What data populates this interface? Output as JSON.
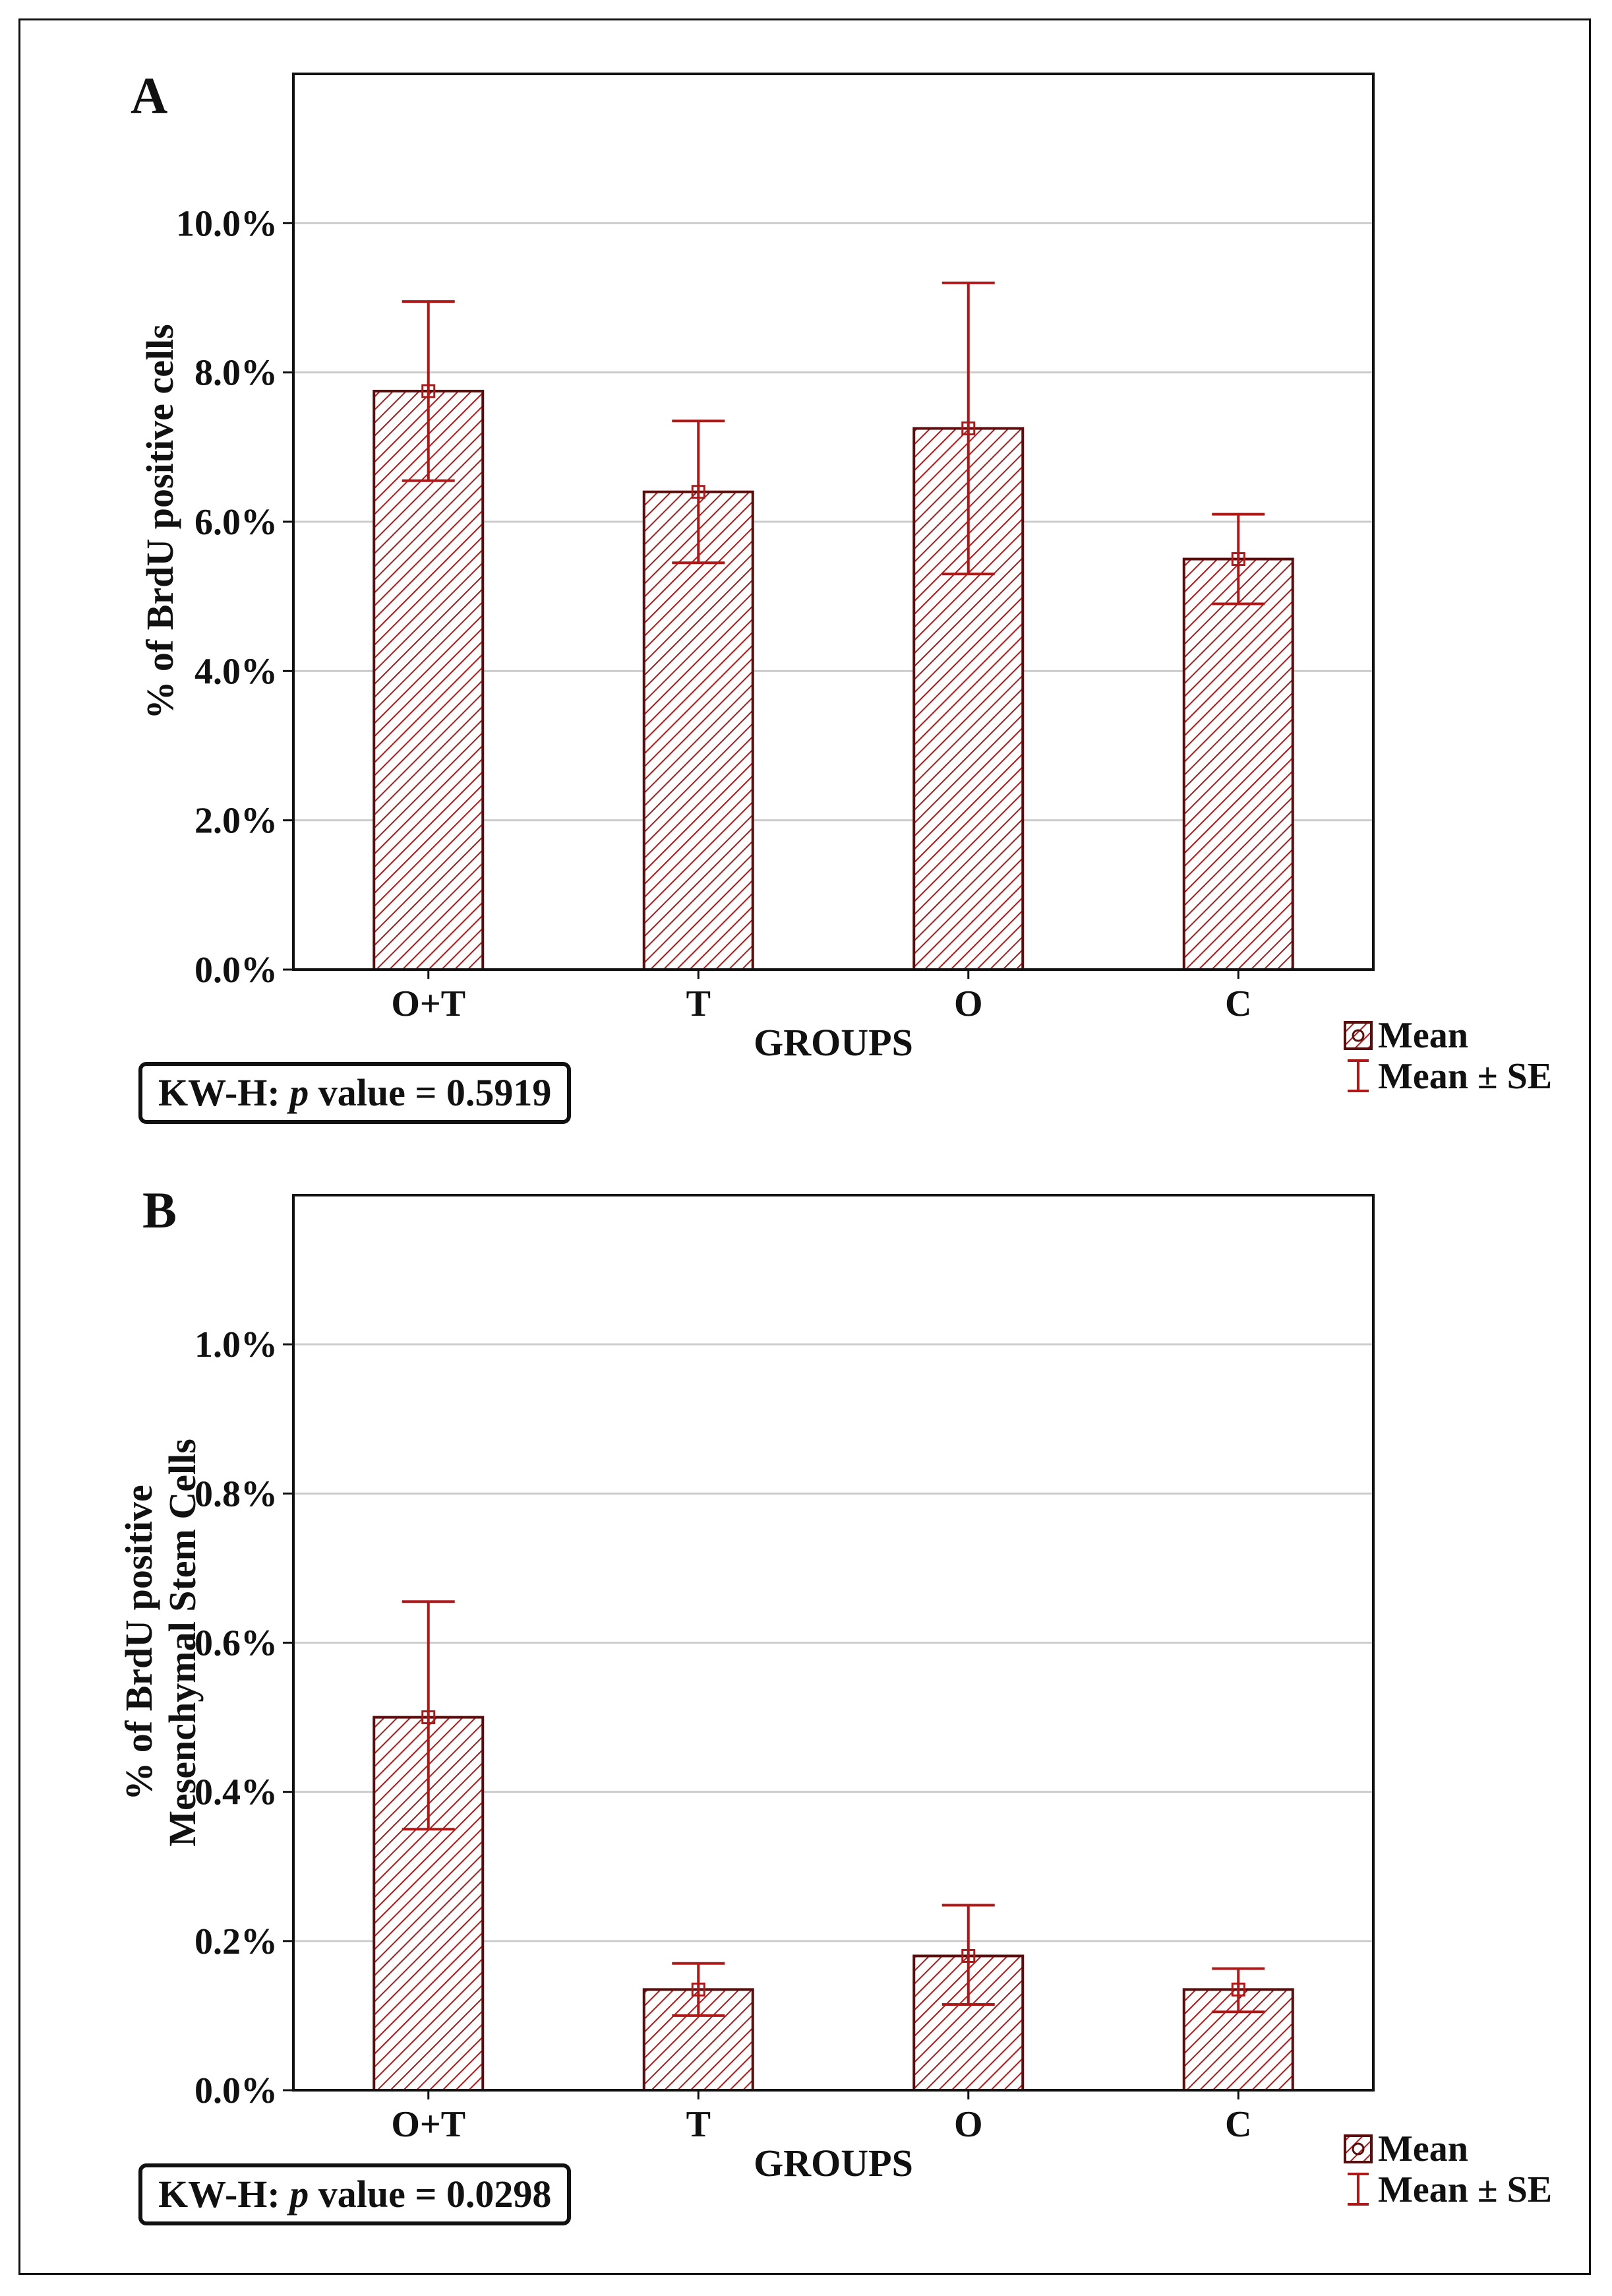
{
  "colors": {
    "bar_fill": "#ffffff",
    "hatch": "#b01818",
    "bar_edge": "#5a0d0d",
    "error_bar": "#b01818",
    "grid": "#cccccc",
    "axis": "#111111"
  },
  "figure": {
    "panel_a_letter": "A",
    "panel_b_letter": "B",
    "stat_a": {
      "prefix": "KW-H: ",
      "p_symbol": "p",
      "suffix": " value = 0.5919"
    },
    "stat_b": {
      "prefix": "KW-H: ",
      "p_symbol": "p",
      "suffix": " value = 0.0298"
    }
  },
  "chart_data": [
    {
      "type": "bar",
      "panel": "A",
      "categories": [
        "O+T",
        "T",
        "O",
        "C"
      ],
      "values": [
        7.75,
        6.4,
        7.25,
        5.5
      ],
      "error_low": [
        6.55,
        5.45,
        5.3,
        4.9
      ],
      "error_high": [
        8.95,
        7.35,
        9.2,
        6.1
      ],
      "xlabel": "GROUPS",
      "ylabel": "% of BrdU positive cells",
      "ylim": [
        0,
        12
      ],
      "yticks": [
        0,
        2,
        4,
        6,
        8,
        10
      ],
      "ytick_labels": [
        "0.0%",
        "2.0%",
        "4.0%",
        "6.0%",
        "8.0%",
        "10.0%"
      ],
      "grid": true,
      "legend": {
        "mean": "Mean",
        "se": "Mean ± SE",
        "position": "bottom-right"
      }
    },
    {
      "type": "bar",
      "panel": "B",
      "categories": [
        "O+T",
        "T",
        "O",
        "C"
      ],
      "values": [
        0.5,
        0.135,
        0.18,
        0.135
      ],
      "error_low": [
        0.35,
        0.1,
        0.115,
        0.105
      ],
      "error_high": [
        0.655,
        0.17,
        0.248,
        0.163
      ],
      "xlabel": "GROUPS",
      "ylabel": [
        "% of BrdU positive",
        "Mesenchymal Stem Cells"
      ],
      "ylim": [
        0,
        1.2
      ],
      "yticks": [
        0,
        0.2,
        0.4,
        0.6,
        0.8,
        1.0
      ],
      "ytick_labels": [
        "0.0%",
        "0.2%",
        "0.4%",
        "0.6%",
        "0.8%",
        "1.0%"
      ],
      "grid": true,
      "legend": {
        "mean": "Mean",
        "se": "Mean ± SE",
        "position": "bottom-right"
      }
    }
  ]
}
